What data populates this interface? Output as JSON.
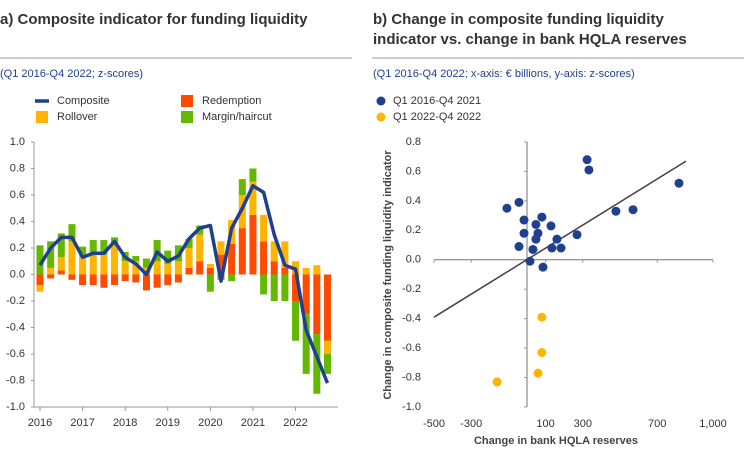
{
  "chart_data": [
    {
      "type": "bar",
      "title": "a) Composite indicator for funding liquidity",
      "subtitle": "(Q1 2016-Q4 2022; z-scores)",
      "stacked": true,
      "categories": [
        "2016",
        null,
        null,
        null,
        "2017",
        null,
        null,
        null,
        "2018",
        null,
        null,
        null,
        "2019",
        null,
        null,
        null,
        "2020",
        null,
        null,
        null,
        "2021",
        null,
        null,
        null,
        "2022",
        null,
        null,
        null
      ],
      "series": [
        {
          "name": "Composite",
          "type": "line",
          "color": "#1f3f8f",
          "values": [
            0.07,
            0.2,
            0.28,
            0.28,
            0.13,
            0.16,
            0.16,
            0.25,
            0.13,
            0.08,
            0.0,
            0.17,
            0.1,
            0.14,
            0.27,
            0.35,
            0.37,
            -0.05,
            0.35,
            0.5,
            0.67,
            0.62,
            0.3,
            0.07,
            0.04,
            -0.42,
            -0.62,
            -0.82
          ]
        },
        {
          "name": "Redemption",
          "color": "#ff4b00",
          "values": [
            -0.08,
            -0.03,
            0.03,
            -0.04,
            -0.08,
            -0.08,
            -0.1,
            -0.08,
            -0.05,
            -0.06,
            -0.12,
            -0.1,
            -0.08,
            -0.06,
            0.05,
            0.1,
            0.05,
            0.15,
            0.23,
            0.35,
            0.45,
            0.25,
            0.1,
            0.05,
            -0.2,
            -0.3,
            -0.45,
            -0.5
          ]
        },
        {
          "name": "Rollover",
          "color": "#ffb400",
          "values": [
            -0.05,
            0.05,
            0.1,
            0.25,
            0.15,
            0.15,
            0.15,
            0.22,
            0.1,
            0.1,
            0.05,
            0.1,
            0.08,
            0.1,
            0.15,
            0.2,
            0.03,
            0.1,
            0.18,
            0.25,
            0.25,
            0.2,
            0.15,
            0.2,
            0.1,
            0.05,
            0.07,
            -0.1
          ]
        },
        {
          "name": "Margin/haircut",
          "color": "#65b800",
          "values": [
            0.22,
            0.2,
            0.18,
            0.13,
            0.06,
            0.11,
            0.11,
            0.06,
            0.07,
            0.04,
            0.07,
            0.16,
            0.1,
            0.12,
            0.07,
            0.07,
            -0.13,
            -0.04,
            -0.05,
            0.12,
            0.1,
            -0.15,
            -0.2,
            -0.2,
            -0.3,
            -0.45,
            -0.45,
            -0.15
          ]
        }
      ],
      "ylim": [
        -1.0,
        1.0
      ],
      "yticks": [
        {
          "value": -1.0,
          "label": "-1.0"
        },
        -0.8,
        -0.6,
        -0.4,
        -0.2,
        {
          "value": 0,
          "label": "0.0"
        },
        0.2,
        0.4,
        0.6,
        0.8,
        {
          "value": 1.0,
          "label": "1.0"
        }
      ]
    },
    {
      "type": "scatter",
      "title": "b) Change in composite funding liquidity indicator vs. change in bank HQLA reserves",
      "subtitle": "(Q1 2016-Q4 2022; x-axis: € billions, y-axis: z-scores)",
      "x_label": "Change in bank HQLA reserves",
      "y_label": "Change in composite funding liquidity indicator",
      "series": [
        {
          "name": "Q1 2016-Q4 2021",
          "color": "#1f3f8f",
          "x": [
            323,
            333,
            817,
            478,
            570,
            -43,
            -108,
            -16,
            80,
            48,
            129,
            -16,
            59,
            48,
            161,
            -43,
            32,
            134,
            183,
            269,
            16,
            86
          ],
          "values": [
            0.68,
            0.61,
            0.52,
            0.33,
            0.34,
            0.39,
            0.35,
            0.27,
            0.29,
            0.24,
            0.23,
            0.18,
            0.18,
            0.14,
            0.14,
            0.09,
            0.07,
            0.08,
            0.08,
            0.17,
            -0.01,
            -0.05
          ]
        },
        {
          "name": "Q1 2022-Q4 2022",
          "color": "#ffb400",
          "x": [
            80,
            80,
            59,
            -161
          ],
          "values": [
            -0.39,
            -0.63,
            -0.77,
            -0.83
          ]
        }
      ],
      "trendline": {
        "color": "#404040",
        "x": [
          -500,
          855
        ],
        "values": [
          -0.39,
          0.67
        ]
      },
      "xlim": [
        -500,
        1000
      ],
      "xticks": [
        -500,
        -300,
        100,
        300,
        700,
        {
          "value": 1000,
          "label": "1,000"
        }
      ],
      "ylim": [
        -1.0,
        0.8
      ],
      "yticks": [
        {
          "value": -1.0,
          "label": "-1.0"
        },
        -0.8,
        -0.6,
        -0.4,
        -0.2,
        {
          "value": 0,
          "label": "0.0"
        },
        0.2,
        0.4,
        0.6,
        0.8
      ]
    }
  ]
}
